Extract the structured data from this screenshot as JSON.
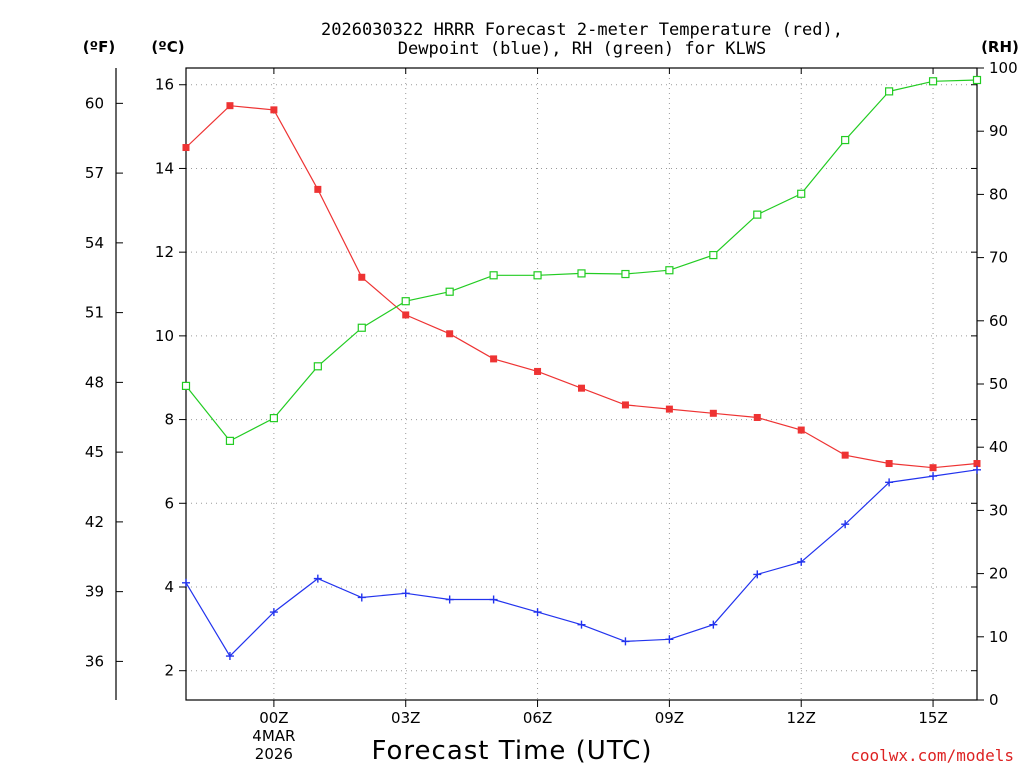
{
  "chart_data": {
    "type": "line",
    "title_line1": "2026030322 HRRR Forecast 2-meter Temperature (red),",
    "title_line2": "Dewpoint (blue), RH (green) for KLWS",
    "units": {
      "fahrenheit": "(ºF)",
      "celsius": "(ºC)",
      "rh": "(RH)"
    },
    "xlabel": "Forecast Time (UTC)",
    "credit": "coolwx.com/models",
    "x_hours": [
      -2,
      -1,
      0,
      1,
      2,
      3,
      4,
      5,
      6,
      7,
      8,
      9,
      10,
      11,
      12,
      13,
      14,
      15,
      16
    ],
    "xlim": [
      -2,
      16
    ],
    "x_ticks": [
      {
        "hour": 0,
        "label": "00Z",
        "sub1": "4MAR",
        "sub2": "2026"
      },
      {
        "hour": 3,
        "label": "03Z"
      },
      {
        "hour": 6,
        "label": "06Z"
      },
      {
        "hour": 9,
        "label": "09Z"
      },
      {
        "hour": 12,
        "label": "12Z"
      },
      {
        "hour": 15,
        "label": "15Z"
      }
    ],
    "celsius_axis": {
      "ylim": [
        1.3,
        16.4
      ],
      "ticks": [
        2,
        4,
        6,
        8,
        10,
        12,
        14,
        16
      ]
    },
    "fahrenheit_ticks": [
      36,
      39,
      42,
      45,
      48,
      51,
      54,
      57,
      60
    ],
    "rh_axis": {
      "ylim": [
        0,
        100
      ],
      "ticks": [
        0,
        10,
        20,
        30,
        40,
        50,
        60,
        70,
        80,
        90,
        100
      ]
    },
    "series": [
      {
        "name": "Temperature",
        "axis": "celsius",
        "color": "#ee3333",
        "marker": "filled-square",
        "values": [
          14.5,
          15.5,
          15.4,
          13.5,
          11.4,
          10.5,
          10.05,
          9.45,
          9.15,
          8.75,
          8.35,
          8.25,
          8.15,
          8.05,
          7.75,
          7.15,
          6.95,
          6.85,
          6.95
        ]
      },
      {
        "name": "Dewpoint",
        "axis": "celsius",
        "color": "#2233ee",
        "marker": "plus",
        "values": [
          4.1,
          2.35,
          3.4,
          4.2,
          3.75,
          3.85,
          3.7,
          3.7,
          3.4,
          3.1,
          2.7,
          2.75,
          3.1,
          4.3,
          4.6,
          5.5,
          6.5,
          6.65,
          6.8
        ]
      },
      {
        "name": "RH",
        "axis": "rh",
        "color": "#22cc22",
        "marker": "open-square",
        "values": [
          49.7,
          41.0,
          44.6,
          52.8,
          58.9,
          63.1,
          64.6,
          67.2,
          67.2,
          67.5,
          67.4,
          68.0,
          70.4,
          76.8,
          80.1,
          88.6,
          96.3,
          97.9,
          98.1
        ]
      }
    ]
  }
}
